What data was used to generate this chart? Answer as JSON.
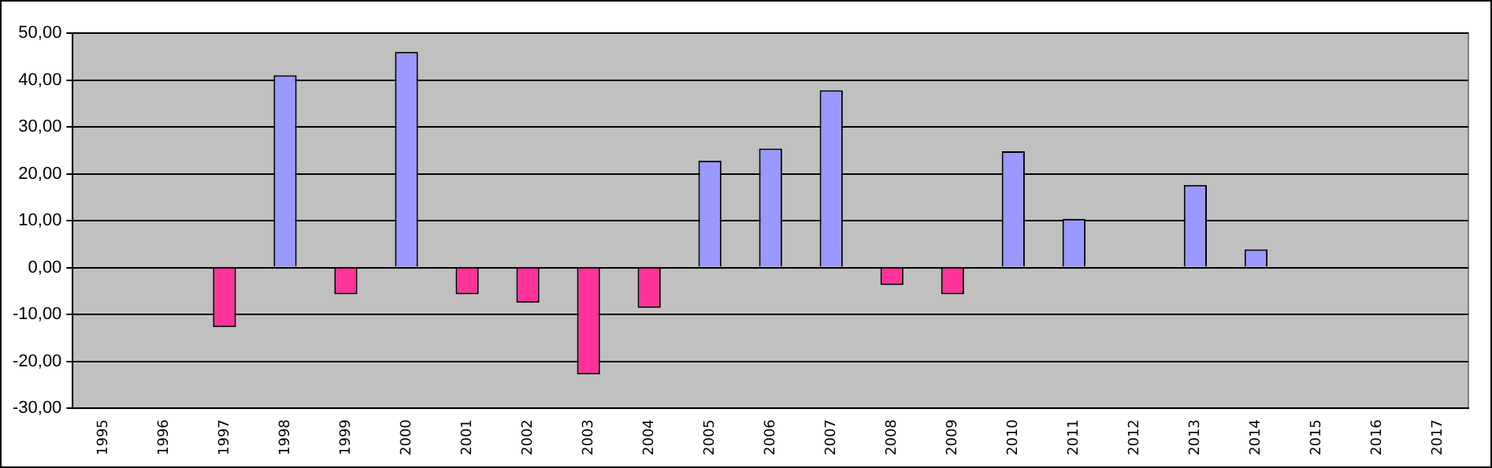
{
  "chart_data": {
    "type": "bar",
    "categories": [
      "1995",
      "1996",
      "1997",
      "1998",
      "1999",
      "2000",
      "2001",
      "2002",
      "2003",
      "2004",
      "2005",
      "2006",
      "2007",
      "2008",
      "2009",
      "2010",
      "2011",
      "2012",
      "2013",
      "2014",
      "2015",
      "2016",
      "2017"
    ],
    "values": [
      0,
      0,
      -12.7,
      41,
      -5.7,
      46,
      -5.7,
      -7.5,
      -22.8,
      -8.6,
      22.8,
      25.4,
      37.8,
      -3.7,
      -5.7,
      24.8,
      10.4,
      0,
      17.6,
      3.9,
      0,
      0,
      0
    ],
    "colors": [
      "#9999ff",
      "#9999ff",
      "#ff3399",
      "#9999ff",
      "#ff3399",
      "#9999ff",
      "#ff3399",
      "#ff3399",
      "#ff3399",
      "#ff3399",
      "#9999ff",
      "#9999ff",
      "#9999ff",
      "#ff3399",
      "#ff3399",
      "#9999ff",
      "#9999ff",
      "#9999ff",
      "#9999ff",
      "#9999ff",
      "#9999ff",
      "#9999ff",
      "#9999ff"
    ],
    "ylim": [
      -30,
      50
    ],
    "yticks": [
      {
        "value": -30,
        "label": "-30,00"
      },
      {
        "value": -20,
        "label": "-20,00"
      },
      {
        "value": -10,
        "label": "-10,00"
      },
      {
        "value": 0,
        "label": "0,00"
      },
      {
        "value": 10,
        "label": "10,00"
      },
      {
        "value": 20,
        "label": "20,00"
      },
      {
        "value": 30,
        "label": "30,00"
      },
      {
        "value": 40,
        "label": "40,00"
      },
      {
        "value": 50,
        "label": "50,00"
      }
    ],
    "grid": "y",
    "legend": false
  }
}
